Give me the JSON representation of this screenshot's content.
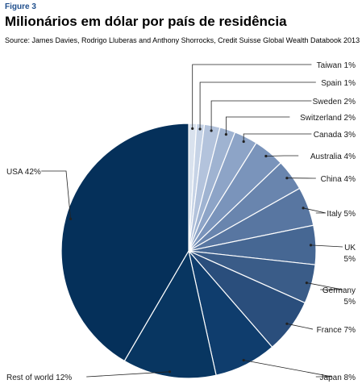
{
  "figure_label": "Figure 3",
  "title": "Milionários em dólar por país de residência",
  "source": "Source: James Davies, Rodrigo Lluberas and Anthony Shorrocks, Credit Suisse Global Wealth Databook 2013",
  "chart_data": {
    "type": "pie",
    "start_angle_deg": 0,
    "direction": "clockwise",
    "slices": [
      {
        "label": "Taiwan",
        "value": 1,
        "text": "Taiwan 1%",
        "color": "#d9e2ee"
      },
      {
        "label": "Spain",
        "value": 1,
        "text": "Spain 1%",
        "color": "#c6d3e6"
      },
      {
        "label": "Sweden",
        "value": 2,
        "text": "Sweden 2%",
        "color": "#b3c3dc"
      },
      {
        "label": "Switzerland",
        "value": 2,
        "text": "Switzerland 2%",
        "color": "#9fb3d1"
      },
      {
        "label": "Canada",
        "value": 3,
        "text": "Canada 3%",
        "color": "#8da4c7"
      },
      {
        "label": "Australia",
        "value": 4,
        "text": "Australia 4%",
        "color": "#7a94bb"
      },
      {
        "label": "China",
        "value": 4,
        "text": "China 4%",
        "color": "#6985ae"
      },
      {
        "label": "Italy",
        "value": 5,
        "text": "Italy 5%",
        "color": "#5876a1"
      },
      {
        "label": "UK",
        "value": 5,
        "text": "UK 5%",
        "color": "#466793"
      },
      {
        "label": "Germany",
        "value": 5,
        "text": "Germany 5%",
        "color": "#3a5c88"
      },
      {
        "label": "France",
        "value": 7,
        "text": "France 7%",
        "color": "#2a4e7c"
      },
      {
        "label": "Japan",
        "value": 8,
        "text": "Japan 8%",
        "color": "#0f3d6d"
      },
      {
        "label": "Rest of world",
        "value": 12,
        "text": "Rest of world 12%",
        "color": "#083661"
      },
      {
        "label": "USA",
        "value": 42,
        "text": "USA 42%",
        "color": "#05305a"
      }
    ]
  }
}
